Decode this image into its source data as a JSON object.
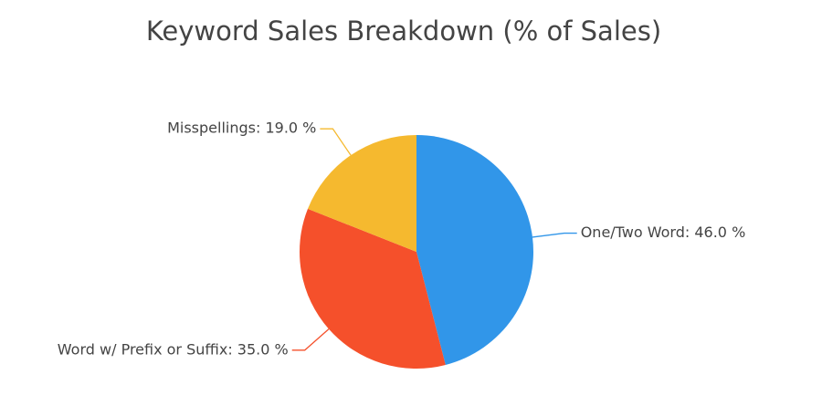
{
  "chart_data": {
    "type": "pie",
    "title": "Keyword Sales Breakdown (% of Sales)",
    "categories": [
      "One/Two Word: 46.0 %",
      "Word w/ Prefix or Suffix: 35.0 %",
      "Misspellings: 19.0 %"
    ],
    "values": [
      46,
      35,
      19
    ],
    "colors": [
      "#3196e9",
      "#f5502b",
      "#f5b92f"
    ]
  }
}
